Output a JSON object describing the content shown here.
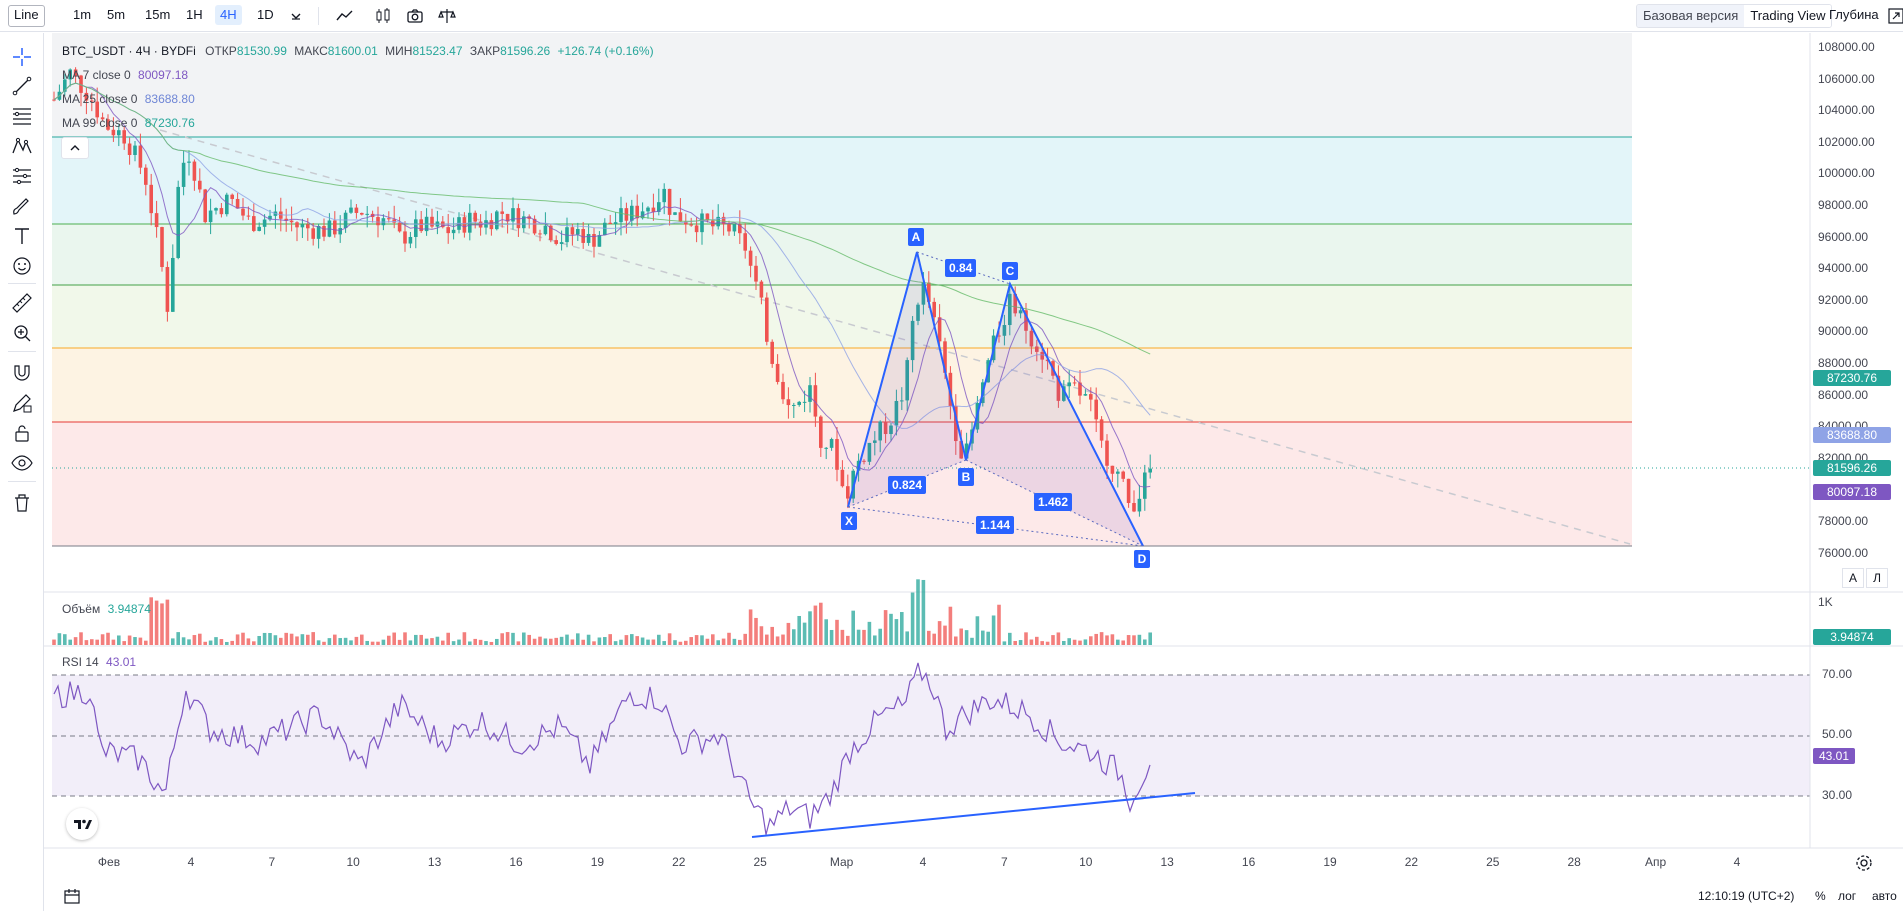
{
  "toolbar": {
    "chart_type": "Line",
    "timeframes": [
      "1m",
      "5m",
      "15m",
      "1H",
      "4H",
      "1D"
    ],
    "active_timeframe": "4H",
    "view_basic": "Базовая версия",
    "view_tv": "Trading View",
    "depth": "Глубина"
  },
  "legend": {
    "symbol": "BTC_USDT · 4Ч · BYDFi",
    "open_label": "ОТКР",
    "open": "81530.99",
    "high_label": "МАКС",
    "high": "81600.01",
    "low_label": "МИН",
    "low": "81523.47",
    "close_label": "ЗАКР",
    "close": "81596.26",
    "change": "+126.74 (+0.16%)",
    "ma7_label": "MA 7 close 0",
    "ma7": "80097.18",
    "ma25_label": "MA 25 close 0",
    "ma25": "83688.80",
    "ma99_label": "MA 99 close 0",
    "ma99": "87230.76",
    "volume_label": "Объём",
    "volume": "3.94874",
    "rsi_label": "RSI 14",
    "rsi": "43.01"
  },
  "price_axis": [
    "108000.00",
    "106000.00",
    "104000.00",
    "102000.00",
    "100000.00",
    "98000.00",
    "96000.00",
    "94000.00",
    "92000.00",
    "90000.00",
    "88000.00",
    "86000.00",
    "84000.00",
    "82000.00",
    "80000.00",
    "78000.00",
    "76000.00"
  ],
  "price_labels": {
    "ma99": "87230.76",
    "ma25": "83688.80",
    "last": "81596.26",
    "ma7": "80097.18",
    "volume_axis": "1K",
    "volume_value": "3.94874",
    "rsi_value": "43.01"
  },
  "rsi_axis": [
    "70.00",
    "50.00",
    "30.00"
  ],
  "time_axis": [
    "Фев",
    "4",
    "7",
    "10",
    "13",
    "16",
    "19",
    "22",
    "25",
    "Мар",
    "4",
    "7",
    "10",
    "13",
    "16",
    "19",
    "22",
    "25",
    "28",
    "Апр",
    "4"
  ],
  "pattern": {
    "points": [
      "X",
      "A",
      "B",
      "C",
      "D"
    ],
    "ratios": {
      "xab": "0.824",
      "abc": "0.84",
      "bcd": "1.462",
      "xad": "1.144"
    }
  },
  "scale_buttons": {
    "auto_a": "A",
    "log_l": "Л"
  },
  "footer": {
    "time": "12:10:19 (UTC+2)",
    "percent": "%",
    "log": "лог",
    "auto": "авто"
  },
  "colors": {
    "up": "#26a69a",
    "down": "#ef5350",
    "ma7": "#7e57c2",
    "ma25": "#8fa3e6",
    "ma99": "#66bb6a",
    "pattern": "#2962ff",
    "rsi": "#7e57c2"
  },
  "fib_zones": [
    {
      "color": "#e3f5f9"
    },
    {
      "color": "#eaf6ee"
    },
    {
      "color": "#f1f8ea"
    },
    {
      "color": "#fdf3e3"
    },
    {
      "color": "#fde9e9"
    }
  ],
  "icons": [
    "crosshair-icon",
    "trend-line-icon",
    "fib-icon",
    "pattern-icon",
    "projection-icon",
    "brush-icon",
    "text-icon",
    "emoji-icon",
    "ruler-icon",
    "zoom-icon",
    "magnet-icon",
    "lock-draw-icon",
    "lock-icon",
    "eye-icon",
    "trash-icon"
  ]
}
